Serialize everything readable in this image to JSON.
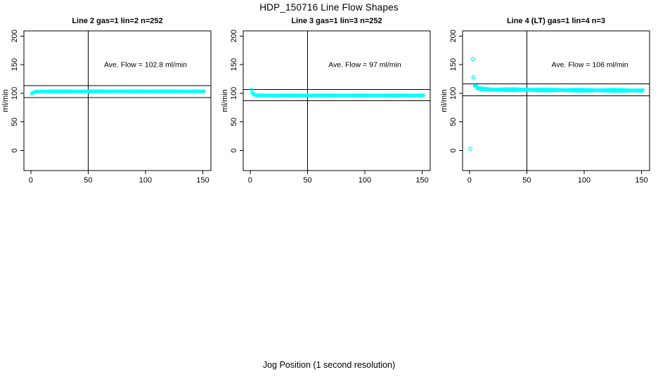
{
  "page": {
    "main_title": "HDP_150716  Line Flow Shapes",
    "bottom_xlabel": "Jog Position (1 second resolution)",
    "background_color": "#FFFFFF",
    "line_color": "#000000",
    "accent_color": "#00FFFF"
  },
  "chart_data": [
    {
      "type": "scatter",
      "title": "Line 2 gas=1 lin=2 n=252",
      "ylabel": "ml/min",
      "annotation": {
        "text": "Ave. Flow =  102.8  ml/min",
        "x": 100,
        "y": 150
      },
      "ave_flow_ml_min": 102.8,
      "n_points": 252,
      "xlim": [
        -6,
        157
      ],
      "ylim": [
        -35,
        209
      ],
      "xticks": [
        0,
        50,
        100,
        150
      ],
      "yticks": [
        0,
        50,
        100,
        150,
        200
      ],
      "vline_x": 50,
      "hlines": [
        113.1,
        92.5
      ],
      "marker": {
        "shape": "open-circle",
        "color": "#00FFFF",
        "radius_px": 1.8
      },
      "series": {
        "name": "flow-trace",
        "x_start": 0.8,
        "x_end": 151,
        "x_step": 0.6,
        "jitter": 0.55,
        "profile": [
          [
            0.8,
            99.3
          ],
          [
            1.6,
            100.3
          ],
          [
            2.6,
            101.8
          ],
          [
            4,
            102.8
          ],
          [
            8,
            103.2
          ],
          [
            60,
            103.4
          ],
          [
            151,
            103.3
          ]
        ]
      },
      "outliers": []
    },
    {
      "type": "scatter",
      "title": "Line 3 gas=1 lin=3 n=252",
      "ylabel": "ml/min",
      "annotation": {
        "text": "Ave. Flow =  97  ml/min",
        "x": 100,
        "y": 150
      },
      "ave_flow_ml_min": 97,
      "n_points": 252,
      "xlim": [
        -6,
        157
      ],
      "ylim": [
        -35,
        209
      ],
      "xticks": [
        0,
        50,
        100,
        150
      ],
      "yticks": [
        0,
        50,
        100,
        150,
        200
      ],
      "vline_x": 50,
      "hlines": [
        106.7,
        87.3
      ],
      "marker": {
        "shape": "open-circle",
        "color": "#00FFFF",
        "radius_px": 1.8
      },
      "series": {
        "name": "flow-trace",
        "x_start": 1,
        "x_end": 151,
        "x_step": 0.6,
        "jitter": 0.55,
        "profile": [
          [
            1,
            106.5
          ],
          [
            1.6,
            102
          ],
          [
            2.5,
            99
          ],
          [
            4,
            97.2
          ],
          [
            7,
            96.4
          ],
          [
            15,
            96.2
          ],
          [
            151,
            96.2
          ]
        ]
      },
      "outliers": []
    },
    {
      "type": "scatter",
      "title": "Line 4 (LT) gas=1 lin=4 n=3",
      "ylabel": "ml/min",
      "annotation": {
        "text": "Ave. Flow =  106  ml/min",
        "x": 105,
        "y": 150
      },
      "ave_flow_ml_min": 106,
      "n_points": 3,
      "xlim": [
        -6,
        157
      ],
      "ylim": [
        -35,
        209
      ],
      "xticks": [
        0,
        50,
        100,
        150
      ],
      "yticks": [
        0,
        50,
        100,
        150,
        200
      ],
      "vline_x": 50,
      "hlines": [
        116.6,
        95.4
      ],
      "marker": {
        "shape": "open-circle",
        "color": "#00FFFF",
        "radius_px": 2
      },
      "series": {
        "name": "flow-trace",
        "x_start": 4.6,
        "x_end": 151,
        "x_step": 0.6,
        "jitter": 1.35,
        "profile": [
          [
            4.6,
            114.5
          ],
          [
            5.5,
            112
          ],
          [
            7,
            109.5
          ],
          [
            9,
            108.3
          ],
          [
            13,
            107.3
          ],
          [
            20,
            106.6
          ],
          [
            45,
            106.2
          ],
          [
            90,
            105.5
          ],
          [
            151,
            104.9
          ]
        ]
      },
      "outliers": [
        [
          0.8,
          3
        ],
        [
          3,
          160
        ],
        [
          3.5,
          128
        ]
      ]
    }
  ]
}
